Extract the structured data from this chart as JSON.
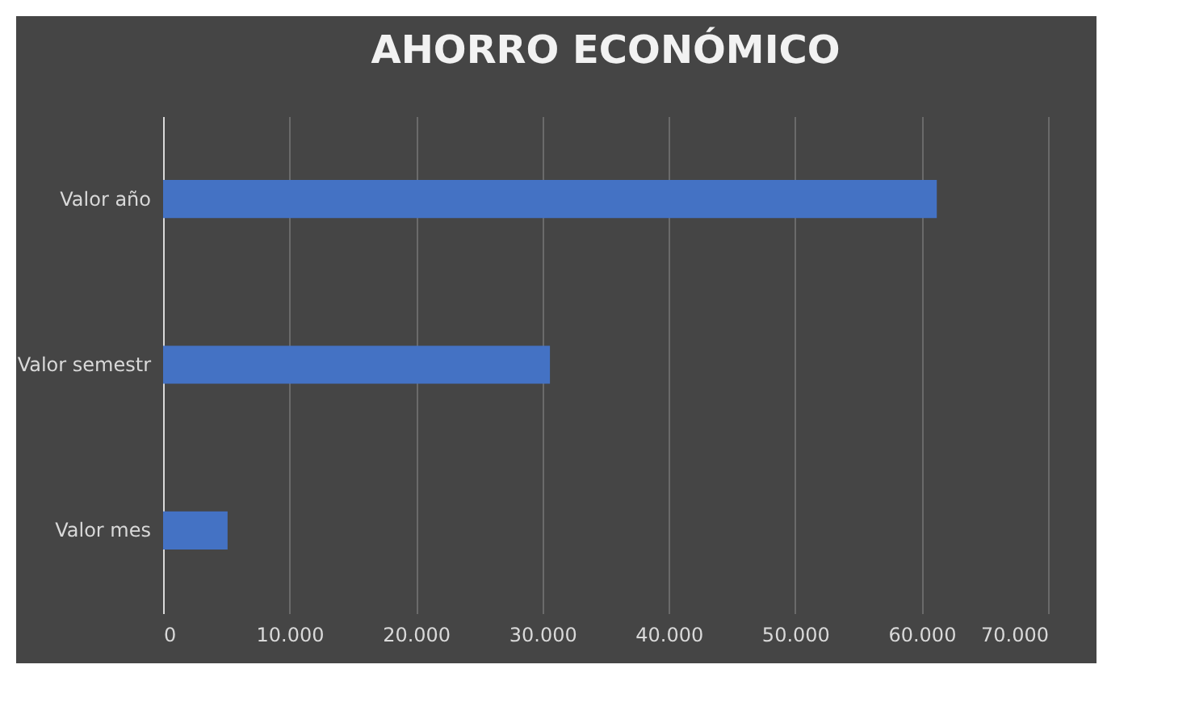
{
  "chart_data": {
    "type": "bar",
    "title": "AHORRO ECONÓMICO",
    "orientation": "horizontal",
    "categories": [
      "Valor año",
      "Valor semestr",
      "Valor mes"
    ],
    "values": [
      61200,
      30600,
      5100
    ],
    "color": "#4472c4",
    "xlim": [
      0,
      70000
    ],
    "xticks": [
      {
        "value": 0,
        "label": "0"
      },
      {
        "value": 10000,
        "label": "10.000"
      },
      {
        "value": 20000,
        "label": "20.000"
      },
      {
        "value": 30000,
        "label": "30.000"
      },
      {
        "value": 40000,
        "label": "40.000"
      },
      {
        "value": 50000,
        "label": "50.000"
      },
      {
        "value": 60000,
        "label": "60.000"
      },
      {
        "value": 70000,
        "label": "70.000"
      }
    ],
    "grid": "x"
  }
}
